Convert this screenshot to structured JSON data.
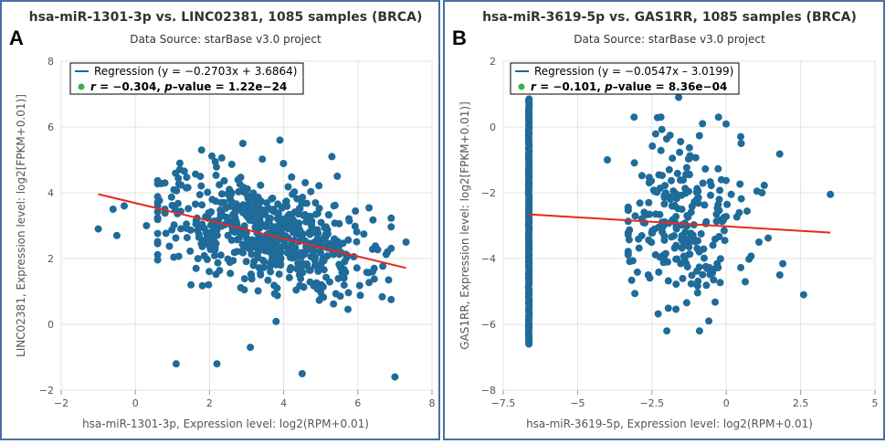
{
  "chart_data": [
    {
      "type": "scatter",
      "panel_label": "A",
      "title": "hsa-miR-1301-3p vs. LINC02381, 1085 samples (BRCA)",
      "subtitle": "Data Source: starBase v3.0 project",
      "xlabel": "hsa-miR-1301-3p, Expression level: log2(RPM+0.01)",
      "ylabel": "LINC02381, Expression level: log2[FPKM+0.01)]",
      "xlim": [
        -2,
        8
      ],
      "ylim": [
        -2,
        8
      ],
      "xticks": [
        -2,
        0,
        2,
        4,
        6,
        8
      ],
      "yticks": [
        -2,
        0,
        2,
        4,
        6,
        8
      ],
      "xtick_labels": [
        "−2",
        "0",
        "2",
        "4",
        "6",
        "8"
      ],
      "ytick_labels": [
        "−2",
        "0",
        "2",
        "4",
        "6",
        "8"
      ],
      "grid": true,
      "legend": {
        "placement": "top-left",
        "regression_label": "Regression (y = −0.2703x + 3.6864)",
        "stats_r": "r",
        "stats_mid": " = −0.304, ",
        "stats_p": "p",
        "stats_end": "–value = 1.22e−24"
      },
      "regression": {
        "slope": -0.2703,
        "intercept": 3.6864,
        "x_range": [
          -1,
          7.3
        ]
      },
      "colors": {
        "points": "#1f6b9a",
        "regression": "#e8291c",
        "legend_dot": "#3cb043"
      },
      "point_cloud": {
        "n": 620,
        "x_mean": 3.6,
        "x_sd": 1.45,
        "y_noise_sd": 0.82
      },
      "outliers": [
        [
          -1,
          2.9
        ],
        [
          -0.6,
          3.5
        ],
        [
          -0.3,
          3.6
        ],
        [
          -0.5,
          2.7
        ],
        [
          0.3,
          3.0
        ],
        [
          1.1,
          -1.2
        ],
        [
          2.2,
          -1.2
        ],
        [
          3.1,
          -0.7
        ],
        [
          4.5,
          -1.5
        ],
        [
          7.0,
          -1.6
        ],
        [
          7.3,
          2.5
        ],
        [
          3.9,
          5.6
        ],
        [
          2.9,
          5.5
        ],
        [
          1.2,
          4.9
        ],
        [
          1.5,
          1.2
        ],
        [
          6.8,
          2.2
        ],
        [
          6.4,
          1.6
        ],
        [
          5.3,
          5.1
        ]
      ]
    },
    {
      "type": "scatter",
      "panel_label": "B",
      "title": "hsa-miR-3619-5p vs. GAS1RR, 1085 samples (BRCA)",
      "subtitle": "Data Source: starBase v3.0 project",
      "xlabel": "hsa-miR-3619-5p, Expression level: log2(RPM+0.01)",
      "ylabel": "GAS1RR, Expression level: log2[FPKM+0.01)]",
      "xlim": [
        -7.5,
        5
      ],
      "ylim": [
        -8,
        2
      ],
      "xticks": [
        -7.5,
        -5,
        -2.5,
        0,
        2.5,
        5
      ],
      "yticks": [
        -8,
        -6,
        -4,
        -2,
        0,
        2
      ],
      "xtick_labels": [
        "−7.5",
        "−5",
        "−2.5",
        "0",
        "2.5",
        "5"
      ],
      "ytick_labels": [
        "−8",
        "−6",
        "−4",
        "−2",
        "0",
        "2"
      ],
      "grid": true,
      "legend": {
        "placement": "top-left",
        "regression_label": "Regression (y = −0.0547x – 3.0199)",
        "stats_r": "r",
        "stats_mid": " = −0.101, ",
        "stats_p": "p",
        "stats_end": "–value = 8.36e−04"
      },
      "regression": {
        "slope": -0.0547,
        "intercept": -3.0199,
        "x_range": [
          -6.64,
          3.5
        ]
      },
      "colors": {
        "points": "#1f6b9a",
        "regression": "#e8291c",
        "legend_dot": "#3cb043"
      },
      "strip": {
        "x": -6.64,
        "y_min": -6.6,
        "y_max": 0.85,
        "n": 150
      },
      "point_cloud": {
        "n": 250,
        "x_mean": -1.3,
        "x_sd": 1.1,
        "y_mean": -2.9,
        "y_sd": 1.2
      },
      "outliers": [
        [
          -3.1,
          0.3
        ],
        [
          -2.2,
          0.3
        ],
        [
          -1.6,
          0.9
        ],
        [
          -0.8,
          0.1
        ],
        [
          -2.0,
          -6.2
        ],
        [
          -0.9,
          -6.2
        ],
        [
          3.5,
          -2.05
        ],
        [
          2.6,
          -5.1
        ],
        [
          1.8,
          -4.5
        ],
        [
          -4.0,
          -1.0
        ],
        [
          0.5,
          -0.5
        ],
        [
          1.2,
          -2.0
        ]
      ]
    }
  ]
}
